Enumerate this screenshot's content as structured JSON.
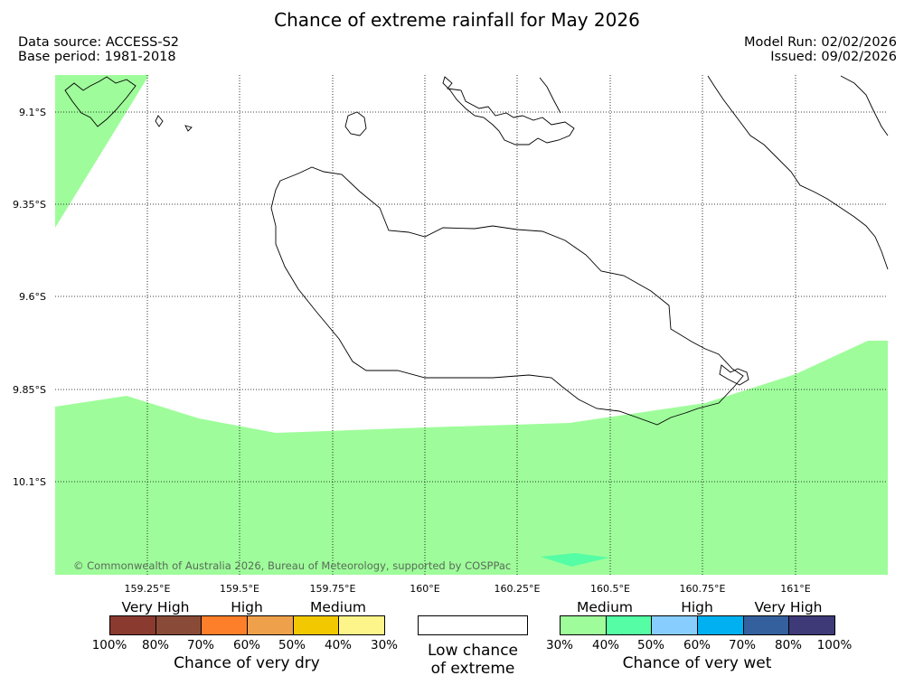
{
  "title": "Chance of extreme rainfall for May 2026",
  "header": {
    "data_source": "Data source: ACCESS-S2",
    "base_period": "Base period: 1981-2018",
    "model_run": "Model Run: 02/02/2026",
    "issued": "Issued: 09/02/2026"
  },
  "map": {
    "lat_labels": [
      "9.1°S",
      "9.35°S",
      "9.6°S",
      "9.85°S",
      "10.1°S"
    ],
    "lon_labels": [
      "159.25°E",
      "159.5°E",
      "159.75°E",
      "160°E",
      "160.25°E",
      "160.5°E",
      "160.75°E",
      "161°E"
    ],
    "copyright": "© Commonwealth of Australia 2026, Bureau of Meteorology, supported by COSPPac",
    "colors": {
      "medium_wet": "#9efd9a",
      "medium_high_wet": "#55fda5",
      "land_outline": "#000000"
    }
  },
  "legend": {
    "dry": {
      "categories": [
        "Very High",
        "High",
        "Medium"
      ],
      "colors": [
        "#8b3a30",
        "#8a4a38",
        "#fe7f2a",
        "#eea14a",
        "#f2c800",
        "#fef58a"
      ],
      "ticks": [
        "100%",
        "80%",
        "70%",
        "60%",
        "50%",
        "40%",
        "30%"
      ],
      "label": "Chance of very dry"
    },
    "low": {
      "label_line1": "Low chance",
      "label_line2": "of extreme"
    },
    "wet": {
      "categories": [
        "Medium",
        "High",
        "Very High"
      ],
      "colors": [
        "#9efd9a",
        "#55fda5",
        "#87cdfd",
        "#00b0f0",
        "#34609e",
        "#3e3a78"
      ],
      "ticks": [
        "30%",
        "40%",
        "50%",
        "60%",
        "70%",
        "80%",
        "100%"
      ],
      "label": "Chance of very wet"
    }
  }
}
